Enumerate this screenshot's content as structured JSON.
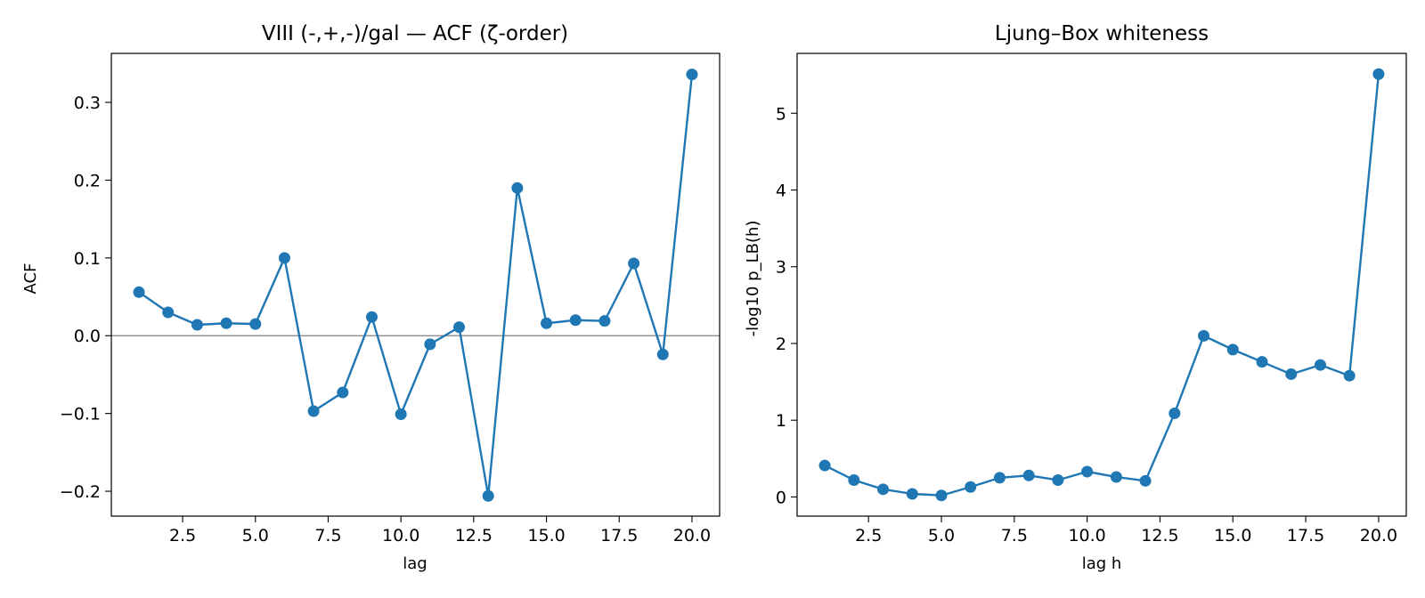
{
  "chart_data": [
    {
      "type": "line",
      "title": "VIII (-,+,-)/gal — ACF (ζ-order)",
      "xlabel": "lag",
      "ylabel": "ACF",
      "xlim": [
        0.05,
        20.95
      ],
      "ylim": [
        -0.232,
        0.363
      ],
      "xticks": [
        2.5,
        5.0,
        7.5,
        10.0,
        12.5,
        15.0,
        17.5,
        20.0
      ],
      "xticklabels": [
        "2.5",
        "5.0",
        "7.5",
        "10.0",
        "12.5",
        "15.0",
        "17.5",
        "20.0"
      ],
      "yticks": [
        -0.2,
        -0.1,
        0.0,
        0.1,
        0.2,
        0.3
      ],
      "yticklabels": [
        "−0.2",
        "−0.1",
        "0.0",
        "0.1",
        "0.2",
        "0.3"
      ],
      "reference_line": 0.0,
      "grid": false,
      "marker": "circle",
      "color": "#1f77b4",
      "reference_color": "#808080",
      "series": [
        {
          "x": [
            1,
            2,
            3,
            4,
            5,
            6,
            7,
            8,
            9,
            10,
            11,
            12,
            13,
            14,
            15,
            16,
            17,
            18,
            19,
            20
          ],
          "values": [
            0.056,
            0.03,
            0.014,
            0.016,
            0.015,
            0.1,
            -0.097,
            -0.073,
            0.024,
            -0.101,
            -0.011,
            0.011,
            -0.206,
            0.19,
            0.016,
            0.02,
            0.019,
            0.093,
            -0.024,
            0.336
          ]
        }
      ]
    },
    {
      "type": "line",
      "title": "Ljung–Box whiteness",
      "xlabel": "lag h",
      "ylabel": "-log10 p_LB(h)",
      "xlim": [
        0.05,
        20.95
      ],
      "ylim": [
        -0.25,
        5.78
      ],
      "xticks": [
        2.5,
        5.0,
        7.5,
        10.0,
        12.5,
        15.0,
        17.5,
        20.0
      ],
      "xticklabels": [
        "2.5",
        "5.0",
        "7.5",
        "10.0",
        "12.5",
        "15.0",
        "17.5",
        "20.0"
      ],
      "yticks": [
        0,
        1,
        2,
        3,
        4,
        5
      ],
      "yticklabels": [
        "0",
        "1",
        "2",
        "3",
        "4",
        "5"
      ],
      "grid": false,
      "marker": "circle",
      "color": "#1f77b4",
      "series": [
        {
          "x": [
            1,
            2,
            3,
            4,
            5,
            6,
            7,
            8,
            9,
            10,
            11,
            12,
            13,
            14,
            15,
            16,
            17,
            18,
            19,
            20
          ],
          "values": [
            0.41,
            0.22,
            0.1,
            0.04,
            0.02,
            0.13,
            0.25,
            0.28,
            0.22,
            0.33,
            0.26,
            0.21,
            1.09,
            2.1,
            1.92,
            1.76,
            1.6,
            1.72,
            1.58,
            5.51
          ]
        }
      ]
    }
  ]
}
